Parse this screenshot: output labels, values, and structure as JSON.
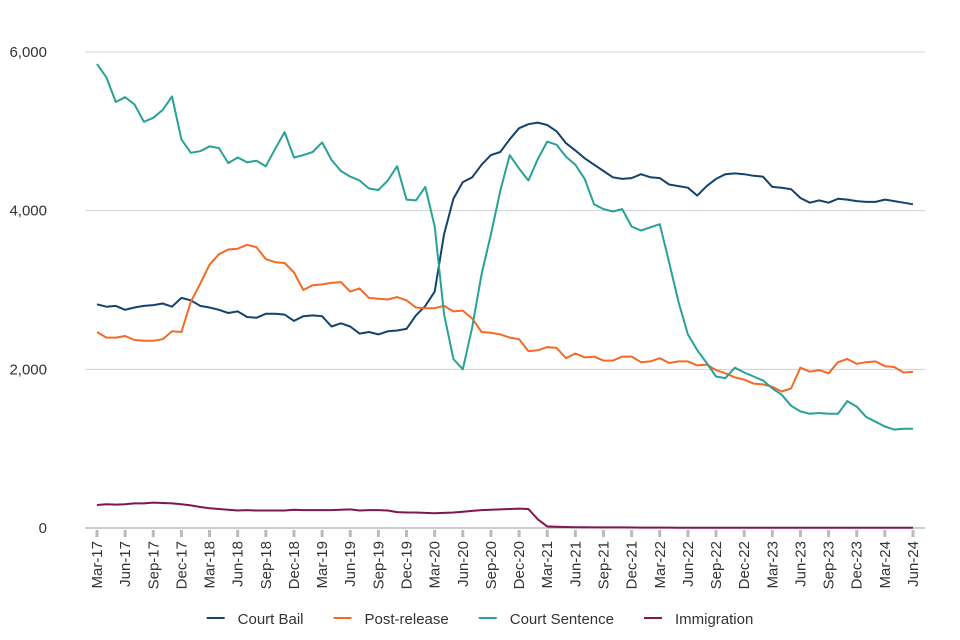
{
  "chart_data": {
    "type": "line",
    "categories": [
      "Mar-17",
      null,
      null,
      "Jun-17",
      null,
      null,
      "Sep-17",
      null,
      null,
      "Dec-17",
      null,
      null,
      "Mar-18",
      null,
      null,
      "Jun-18",
      null,
      null,
      "Sep-18",
      null,
      null,
      "Dec-18",
      null,
      null,
      "Mar-19",
      null,
      null,
      "Jun-19",
      null,
      null,
      "Sep-19",
      null,
      null,
      "Dec-19",
      null,
      null,
      "Mar-20",
      null,
      null,
      "Jun-20",
      null,
      null,
      "Sep-20",
      null,
      null,
      "Dec-20",
      null,
      null,
      "Mar-21",
      null,
      null,
      "Jun-21",
      null,
      null,
      "Sep-21",
      null,
      null,
      "Dec-21",
      null,
      null,
      "Mar-22",
      null,
      null,
      "Jun-22",
      null,
      null,
      "Sep-22",
      null,
      null,
      "Dec-22",
      null,
      null,
      "Mar-23",
      null,
      null,
      "Jun-23",
      null,
      null,
      "Sep-23",
      null,
      null,
      "Dec-23",
      null,
      null,
      "Mar-24",
      null,
      null,
      "Jun-24"
    ],
    "series": [
      {
        "name": "Court Bail",
        "color": "#12436d",
        "values": [
          2820,
          2790,
          2800,
          2750,
          2780,
          2800,
          2810,
          2830,
          2790,
          2900,
          2870,
          2800,
          2780,
          2750,
          2710,
          2730,
          2660,
          2650,
          2700,
          2700,
          2690,
          2610,
          2670,
          2680,
          2670,
          2540,
          2580,
          2540,
          2450,
          2470,
          2440,
          2480,
          2490,
          2510,
          2680,
          2800,
          2980,
          3700,
          4150,
          4360,
          4420,
          4580,
          4700,
          4740,
          4900,
          5040,
          5090,
          5110,
          5080,
          5000,
          4850,
          4760,
          4660,
          4580,
          4500,
          4420,
          4400,
          4410,
          4460,
          4420,
          4410,
          4330,
          4310,
          4290,
          4190,
          4310,
          4400,
          4460,
          4470,
          4460,
          4440,
          4430,
          4300,
          4290,
          4270,
          4160,
          4100,
          4130,
          4100,
          4150,
          4140,
          4120,
          4110,
          4110,
          4140,
          4120,
          4100,
          4080
        ]
      },
      {
        "name": "Post-release",
        "color": "#f46a25",
        "values": [
          2470,
          2400,
          2400,
          2420,
          2370,
          2360,
          2360,
          2380,
          2480,
          2470,
          2850,
          3080,
          3320,
          3450,
          3510,
          3520,
          3570,
          3540,
          3390,
          3350,
          3340,
          3220,
          3000,
          3060,
          3070,
          3090,
          3100,
          2980,
          3020,
          2900,
          2890,
          2880,
          2910,
          2870,
          2780,
          2770,
          2770,
          2800,
          2730,
          2740,
          2640,
          2470,
          2460,
          2440,
          2400,
          2380,
          2230,
          2240,
          2280,
          2270,
          2140,
          2200,
          2150,
          2160,
          2110,
          2110,
          2160,
          2160,
          2090,
          2100,
          2140,
          2080,
          2100,
          2100,
          2050,
          2060,
          1990,
          1950,
          1900,
          1870,
          1820,
          1810,
          1780,
          1720,
          1760,
          2020,
          1970,
          1990,
          1950,
          2090,
          2130,
          2070,
          2090,
          2100,
          2040,
          2030,
          1960,
          1970
        ]
      },
      {
        "name": "Court Sentence",
        "color": "#28a197",
        "values": [
          5850,
          5680,
          5370,
          5430,
          5340,
          5120,
          5170,
          5270,
          5440,
          4900,
          4730,
          4750,
          4810,
          4790,
          4600,
          4670,
          4610,
          4630,
          4560,
          4780,
          4990,
          4670,
          4700,
          4740,
          4860,
          4640,
          4500,
          4430,
          4380,
          4280,
          4260,
          4380,
          4560,
          4140,
          4130,
          4300,
          3800,
          2700,
          2130,
          2000,
          2530,
          3200,
          3700,
          4250,
          4700,
          4530,
          4380,
          4650,
          4870,
          4830,
          4680,
          4580,
          4400,
          4080,
          4020,
          3990,
          4020,
          3800,
          3750,
          3790,
          3830,
          3350,
          2850,
          2440,
          2240,
          2080,
          1910,
          1890,
          2020,
          1960,
          1910,
          1860,
          1760,
          1680,
          1540,
          1470,
          1440,
          1450,
          1440,
          1440,
          1600,
          1530,
          1400,
          1340,
          1280,
          1240,
          1250,
          1250
        ]
      },
      {
        "name": "Immigration",
        "color": "#801650",
        "values": [
          290,
          300,
          295,
          300,
          310,
          310,
          320,
          315,
          310,
          300,
          285,
          265,
          250,
          240,
          230,
          220,
          225,
          220,
          220,
          220,
          220,
          230,
          225,
          225,
          225,
          225,
          230,
          235,
          220,
          225,
          225,
          220,
          200,
          195,
          195,
          190,
          185,
          190,
          195,
          205,
          215,
          225,
          230,
          235,
          240,
          245,
          240,
          110,
          20,
          15,
          12,
          10,
          10,
          8,
          8,
          7,
          7,
          6,
          5,
          5,
          5,
          5,
          4,
          4,
          4,
          4,
          4,
          4,
          4,
          4,
          4,
          4,
          3,
          3,
          3,
          3,
          3,
          3,
          3,
          3,
          3,
          3,
          3,
          3,
          3,
          3,
          3,
          3
        ]
      }
    ],
    "ylim": [
      0,
      6000
    ],
    "yticks": [
      0,
      {
        "value": 2000,
        "label": "2,000"
      },
      {
        "value": 4000,
        "label": "4,000"
      },
      {
        "value": 6000,
        "label": "6,000"
      }
    ],
    "grid": true,
    "legend": "bottom"
  }
}
